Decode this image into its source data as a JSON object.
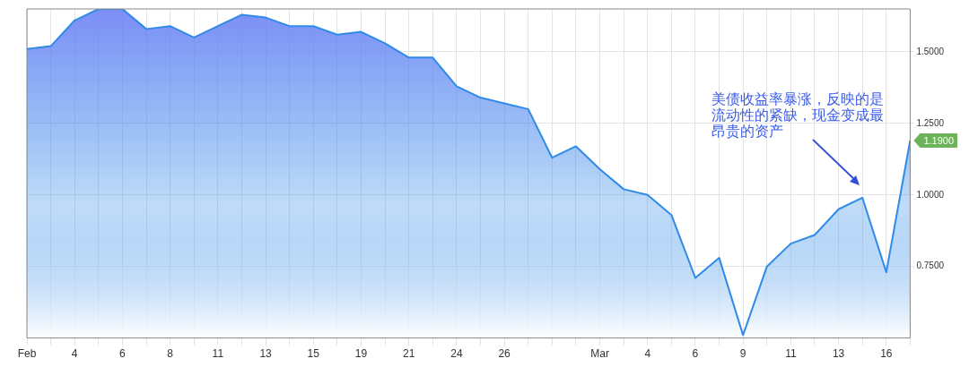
{
  "chart_data": {
    "type": "area",
    "categories": [
      "Feb",
      null,
      "4",
      null,
      "6",
      null,
      "8",
      null,
      "11",
      null,
      "13",
      null,
      "15",
      null,
      "19",
      null,
      "21",
      null,
      "24",
      null,
      "26",
      null,
      null,
      null,
      "Mar",
      null,
      "4",
      null,
      "6",
      null,
      "9",
      null,
      "11",
      null,
      "13",
      null,
      "16",
      null
    ],
    "series": [
      {
        "color": "#2f8ae8",
        "values": [
          1.51,
          1.52,
          1.61,
          1.65,
          1.65,
          1.58,
          1.59,
          1.55,
          1.59,
          1.63,
          1.62,
          1.59,
          1.59,
          1.56,
          1.57,
          1.53,
          1.48,
          1.48,
          1.38,
          1.34,
          1.32,
          1.3,
          1.13,
          1.17,
          1.09,
          1.02,
          1.0,
          0.93,
          0.71,
          0.78,
          0.51,
          0.75,
          0.83,
          0.86,
          0.95,
          0.99,
          0.73,
          1.19
        ],
        "value_labels": [
          null,
          null,
          null,
          null,
          null,
          null,
          null,
          null,
          null,
          null,
          null,
          null,
          null,
          null,
          null,
          null,
          null,
          null,
          null,
          null,
          null,
          null,
          null,
          null,
          null,
          null,
          null,
          null,
          null,
          null,
          null,
          null,
          null,
          null,
          null,
          null,
          null,
          "1.1900"
        ]
      }
    ],
    "ylim": [
      0.5,
      1.65
    ],
    "yticks": [
      {
        "value": 0.75,
        "label": "0.7500"
      },
      {
        "value": 1.0,
        "label": "1.0000"
      },
      {
        "value": 1.25,
        "label": "1.2500"
      },
      {
        "value": 1.5,
        "label": "1.5000"
      }
    ],
    "grid": true,
    "legend": false,
    "marker": "none",
    "annotations": [
      "美债收益率暴涨，反映的是流动性的紧缺，现金变成最昂贵的资产"
    ]
  }
}
